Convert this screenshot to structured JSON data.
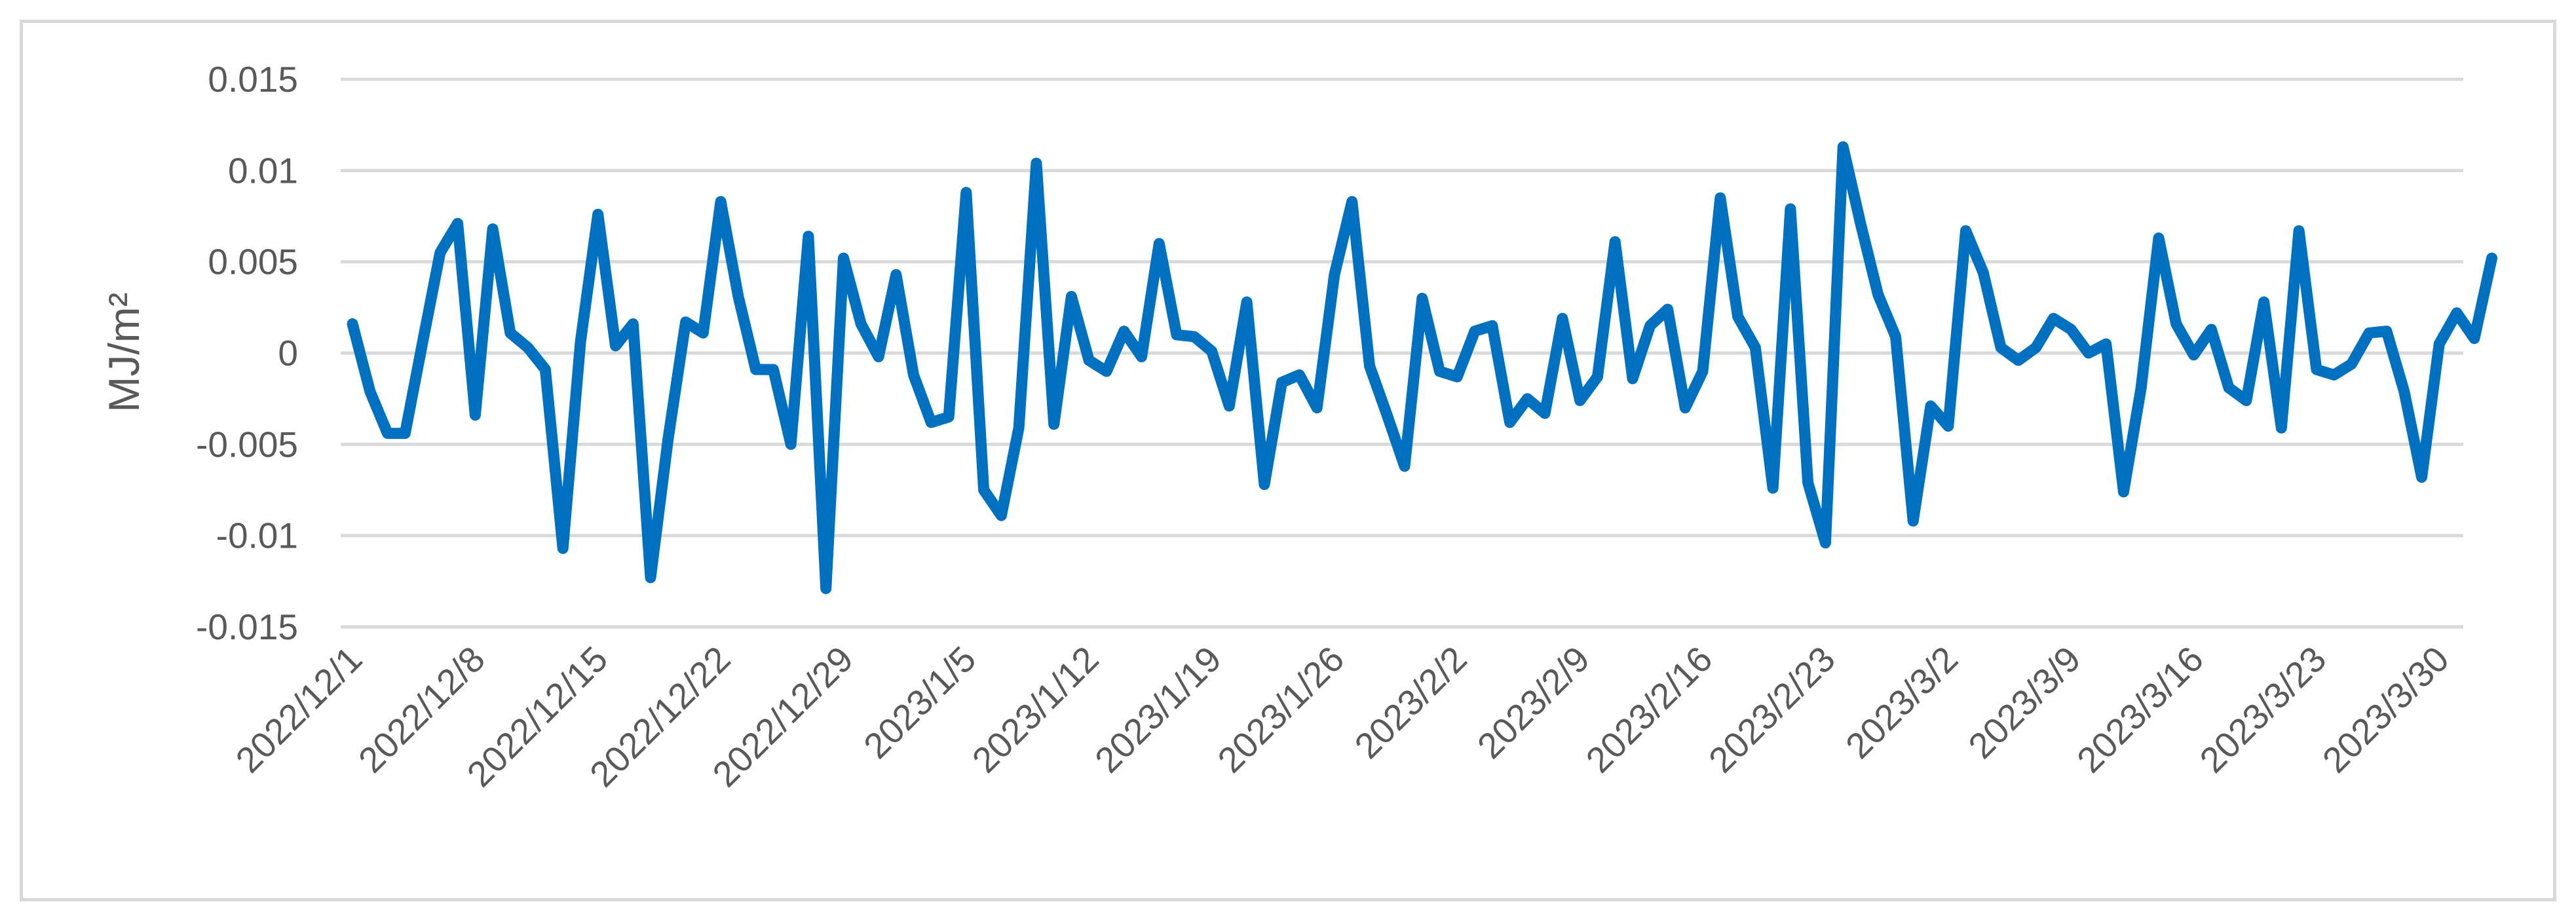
{
  "chart_data": {
    "type": "line",
    "title": "",
    "xlabel": "",
    "ylabel": "MJ/m²",
    "ylim": [
      -0.015,
      0.015
    ],
    "yticks": [
      "0.015",
      "0.01",
      "0.005",
      "0",
      "-0.005",
      "-0.01",
      "-0.015"
    ],
    "ytick_values": [
      0.015,
      0.01,
      0.005,
      0,
      -0.005,
      -0.01,
      -0.015
    ],
    "grid": true,
    "legend": "none",
    "x_start": "2022/12/1",
    "x_end": "2023/3/31",
    "xticks": [
      "2022/12/1",
      "2022/12/8",
      "2022/12/15",
      "2022/12/22",
      "2022/12/29",
      "2023/1/5",
      "2023/1/12",
      "2023/1/19",
      "2023/1/26",
      "2023/2/2",
      "2023/2/9",
      "2023/2/16",
      "2023/2/23",
      "2023/3/2",
      "2023/3/9",
      "2023/3/16",
      "2023/3/23",
      "2023/3/30"
    ],
    "series": [
      {
        "color": "#0070C0",
        "values": [
          0.0016,
          -0.0021,
          -0.0044,
          -0.0044,
          0.0006,
          0.0055,
          0.0071,
          -0.0034,
          0.0068,
          0.0011,
          0.0003,
          -0.0009,
          -0.0107,
          0.0006,
          0.0076,
          0.0004,
          0.0016,
          -0.0123,
          -0.0047,
          0.0017,
          0.0011,
          0.0083,
          0.0031,
          -0.0009,
          -0.0009,
          -0.005,
          0.0064,
          -0.0129,
          0.0052,
          0.0016,
          -0.0002,
          0.0043,
          -0.0012,
          -0.0038,
          -0.0035,
          0.0088,
          -0.0075,
          -0.0089,
          -0.0041,
          0.0104,
          -0.0039,
          0.0031,
          -0.0004,
          -0.001,
          0.0012,
          -0.0002,
          0.006,
          0.001,
          0.0009,
          0.0001,
          -0.0029,
          0.0028,
          -0.0072,
          -0.0016,
          -0.0012,
          -0.003,
          0.0043,
          0.0083,
          -0.0007,
          -0.0034,
          -0.0062,
          0.003,
          -0.001,
          -0.0013,
          0.0012,
          0.0015,
          -0.0038,
          -0.0025,
          -0.0033,
          0.0019,
          -0.0026,
          -0.0013,
          0.0061,
          -0.0014,
          0.0015,
          0.0024,
          -0.003,
          -0.001,
          0.0085,
          0.002,
          0.0003,
          -0.0074,
          0.0079,
          -0.0071,
          -0.0104,
          0.0113,
          0.0071,
          0.0032,
          0.0009,
          -0.0092,
          -0.0029,
          -0.004,
          0.0067,
          0.0044,
          0.0003,
          -0.0004,
          0.0003,
          0.0019,
          0.0013,
          0.0,
          0.0005,
          -0.0076,
          -0.0019,
          0.0063,
          0.0016,
          -0.0001,
          0.0013,
          -0.0019,
          -0.0026,
          0.0028,
          -0.0041,
          0.0067,
          -0.0009,
          -0.0012,
          -0.0006,
          0.0011,
          0.0012,
          -0.0021,
          -0.0068,
          0.0005,
          0.0022,
          0.0008,
          0.0052
        ]
      }
    ]
  }
}
